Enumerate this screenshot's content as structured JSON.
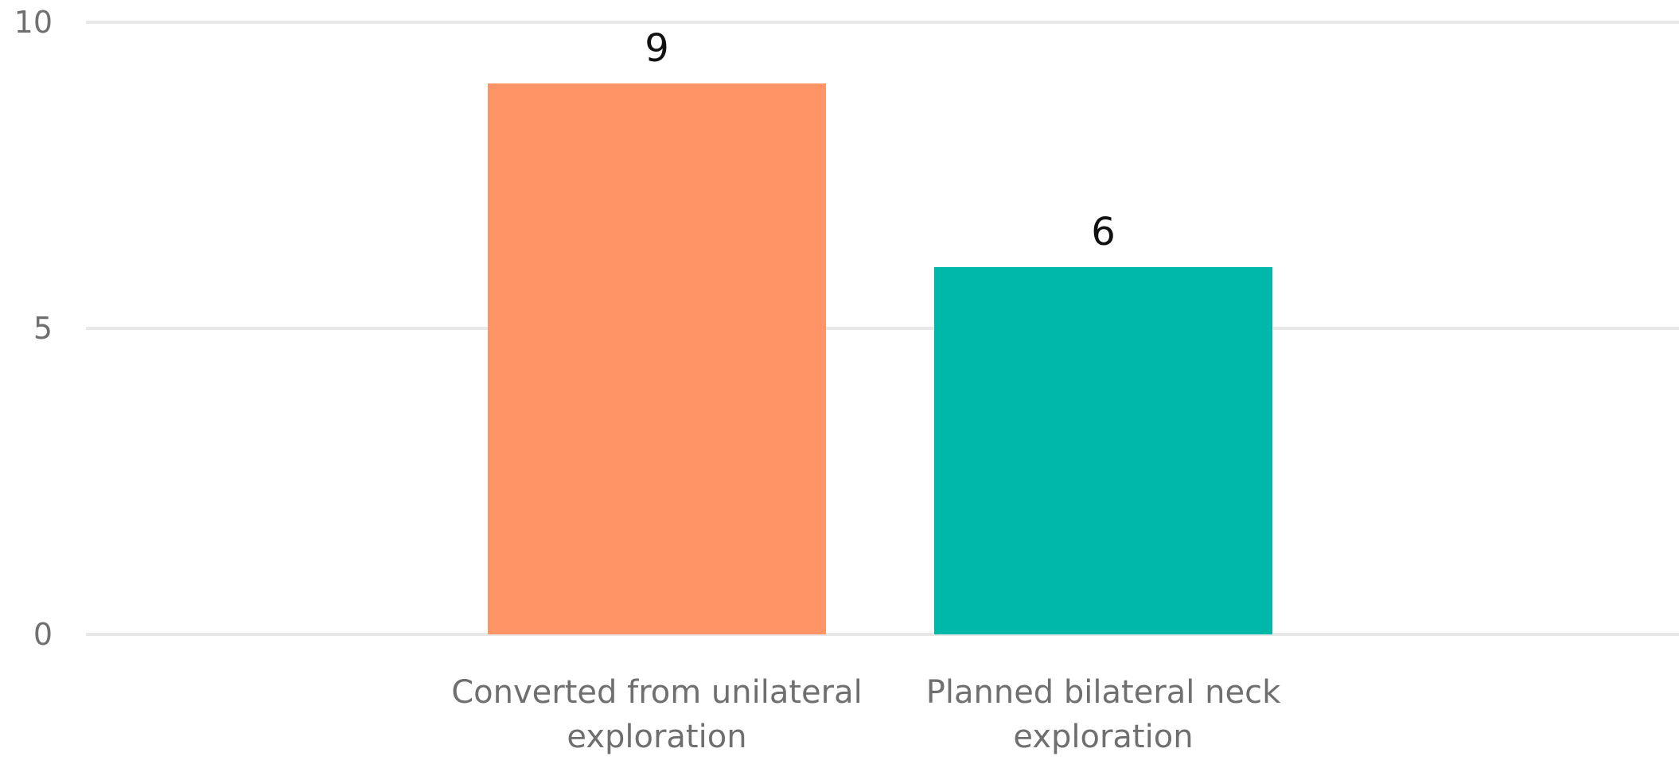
{
  "chart_data": {
    "type": "bar",
    "categories": [
      {
        "lines": [
          "Converted from unilateral",
          "exploration"
        ],
        "label": "Converted from unilateral exploration"
      },
      {
        "lines": [
          "Planned bilateral neck",
          "exploration"
        ],
        "label": "Planned bilateral neck exploration"
      }
    ],
    "values": [
      9,
      6
    ],
    "title": "",
    "xlabel": "",
    "ylabel": "",
    "ylim": [
      0,
      10
    ],
    "yticks": [
      0,
      5,
      10
    ],
    "grid": true,
    "legend": "none",
    "colors": [
      "#FF9566",
      "#00B8AA"
    ],
    "gridColor": "#E8E8E8",
    "tickColor": "#6F6F6F"
  }
}
